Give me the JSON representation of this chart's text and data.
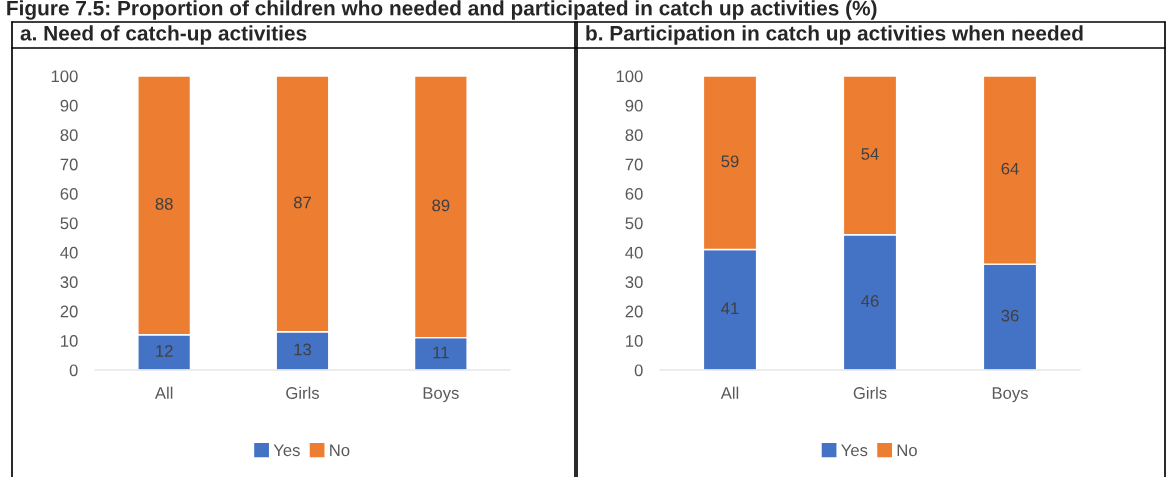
{
  "chart_data": [
    {
      "type": "bar",
      "title": "a. Need of catch-up activities",
      "annotations": [
        "Figure 7.5: Proportion of children who needed and participated in catch up activities (%)"
      ],
      "categories": [
        "All",
        "Girls",
        "Boys"
      ],
      "stacked": true,
      "data_labels": true,
      "legend": "bottom",
      "ylim": [
        0,
        100
      ],
      "yticks": [
        0,
        10,
        20,
        30,
        40,
        50,
        60,
        70,
        80,
        90,
        100
      ],
      "series": [
        {
          "name": "Yes",
          "color": "#4472c4",
          "values": [
            12,
            13,
            11
          ]
        },
        {
          "name": "No",
          "color": "#ed7d31",
          "values": [
            88,
            87,
            89
          ]
        }
      ]
    },
    {
      "type": "bar",
      "title": "b. Participation in catch up activities when needed",
      "categories": [
        "All",
        "Girls",
        "Boys"
      ],
      "stacked": true,
      "data_labels": true,
      "legend": "bottom",
      "ylim": [
        0,
        100
      ],
      "yticks": [
        0,
        10,
        20,
        30,
        40,
        50,
        60,
        70,
        80,
        90,
        100
      ],
      "series": [
        {
          "name": "Yes",
          "color": "#4472c4",
          "values": [
            41,
            46,
            36
          ]
        },
        {
          "name": "No",
          "color": "#ed7d31",
          "values": [
            59,
            54,
            64
          ]
        }
      ]
    }
  ]
}
